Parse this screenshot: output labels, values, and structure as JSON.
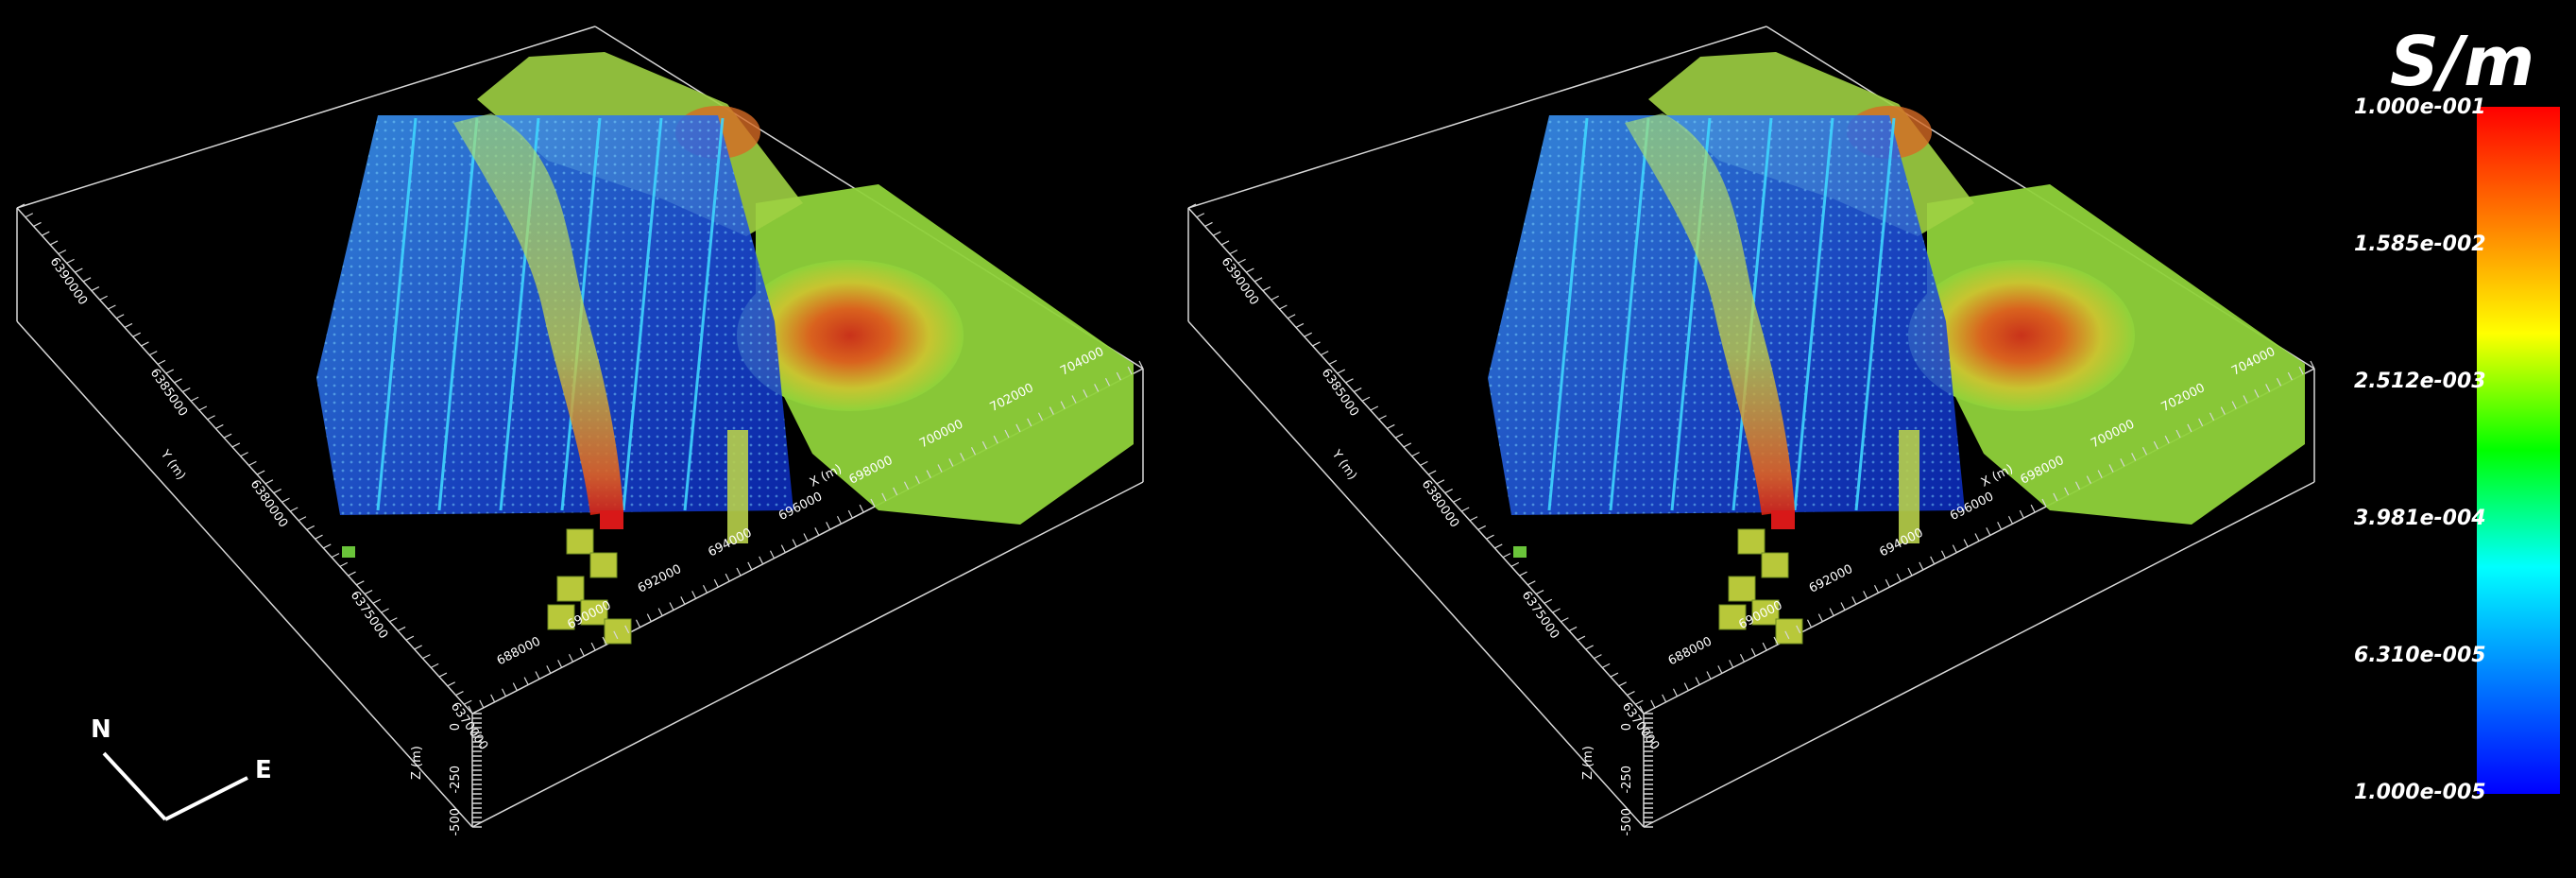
{
  "colorbar": {
    "unit": "S/m",
    "labels": [
      "1.000e-001",
      "1.585e-002",
      "2.512e-003",
      "3.981e-004",
      "6.310e-005",
      "1.000e-005"
    ]
  },
  "compass": {
    "north": "N",
    "east": "E"
  },
  "axes": {
    "x_title": "X (m)",
    "y_title": "Y (m)",
    "z_title": "Z (m)",
    "x_ticks": [
      "688000",
      "690000",
      "692000",
      "694000",
      "696000",
      "698000",
      "700000",
      "702000",
      "704000"
    ],
    "y_ticks": [
      "6370000",
      "6375000",
      "6380000",
      "6385000",
      "6390000"
    ],
    "z_ticks": [
      "0",
      "-250",
      "-500"
    ]
  },
  "colors": {
    "background": "#000000",
    "box_edges": "#d8d8d8",
    "model_green": "#8fd23a",
    "model_red": "#d83a1c",
    "points_blue": "#2b6cff",
    "points_cyan": "#3fd5ff"
  },
  "views": [
    "left-view",
    "right-view"
  ]
}
